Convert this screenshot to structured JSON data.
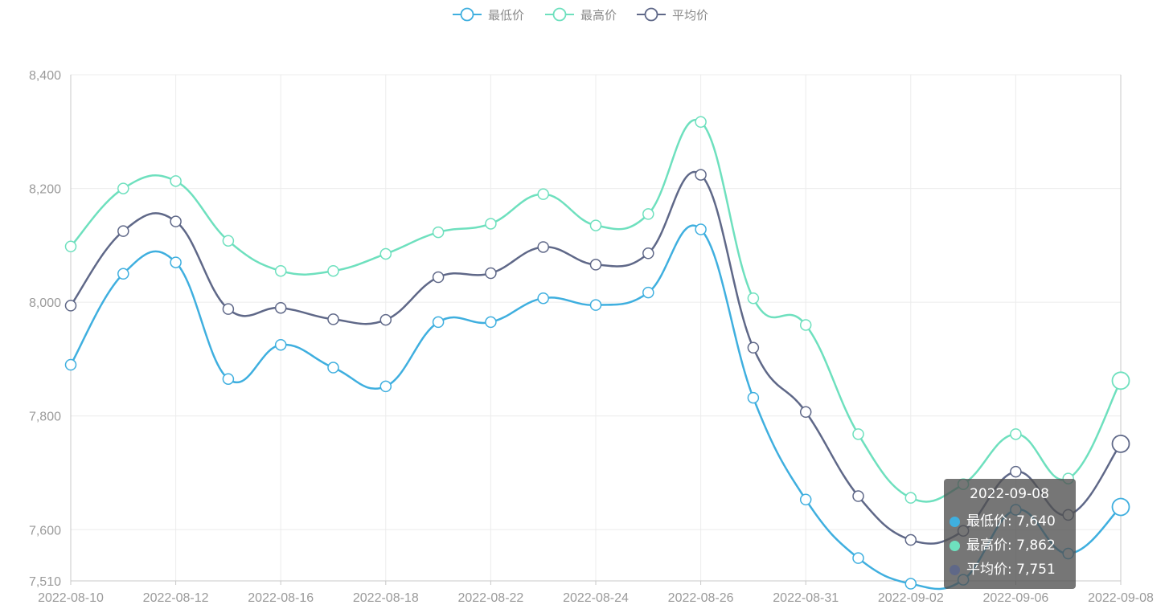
{
  "chart_data": {
    "type": "line",
    "x": [
      "2022-08-10",
      "2022-08-11",
      "2022-08-12",
      "2022-08-15",
      "2022-08-16",
      "2022-08-17",
      "2022-08-18",
      "2022-08-19",
      "2022-08-22",
      "2022-08-23",
      "2022-08-24",
      "2022-08-25",
      "2022-08-26",
      "2022-08-29",
      "2022-08-31",
      "2022-09-01",
      "2022-09-02",
      "2022-09-05",
      "2022-09-06",
      "2022-09-07",
      "2022-09-08"
    ],
    "x_tick_labels": [
      "2022-08-10",
      "2022-08-12",
      "2022-08-16",
      "2022-08-18",
      "2022-08-22",
      "2022-08-24",
      "2022-08-26",
      "2022-08-31",
      "2022-09-02",
      "2022-09-06",
      "2022-09-08"
    ],
    "y_tick_labels": [
      "8,400",
      "8,200",
      "8,000",
      "7,800",
      "7,600",
      "7,510"
    ],
    "y_ticks": [
      8400,
      8200,
      8000,
      7800,
      7600,
      7510
    ],
    "ylim": [
      7510,
      8400
    ],
    "series": [
      {
        "name": "最低价",
        "color": "#3fafdf",
        "values": [
          7890,
          8050,
          8070,
          7865,
          7925,
          7885,
          7852,
          7965,
          7965,
          8007,
          7995,
          8017,
          8128,
          7832,
          7653,
          7550,
          7505,
          7512,
          7635,
          7558,
          7640
        ]
      },
      {
        "name": "最高价",
        "color": "#6ee0be",
        "values": [
          8098,
          8200,
          8213,
          8108,
          8055,
          8055,
          8085,
          8123,
          8138,
          8190,
          8135,
          8155,
          8317,
          8007,
          7960,
          7768,
          7656,
          7680,
          7768,
          7690,
          7862
        ]
      },
      {
        "name": "平均价",
        "color": "#5f6888",
        "values": [
          7994,
          8125,
          8142,
          7988,
          7990,
          7970,
          7969,
          8044,
          8051,
          8097,
          8066,
          8086,
          8224,
          7920,
          7807,
          7659,
          7582,
          7598,
          7702,
          7626,
          7751
        ]
      }
    ],
    "legend_position": "top-center",
    "grid": true,
    "smooth": true
  },
  "tooltip": {
    "title": "2022-09-08",
    "sep": ": ",
    "rows": [
      {
        "name": "最低价",
        "value": "7,640",
        "color": "#3fafdf"
      },
      {
        "name": "最高价",
        "value": "7,862",
        "color": "#6ee0be"
      },
      {
        "name": "平均价",
        "value": "7,751",
        "color": "#5f6888"
      }
    ]
  }
}
